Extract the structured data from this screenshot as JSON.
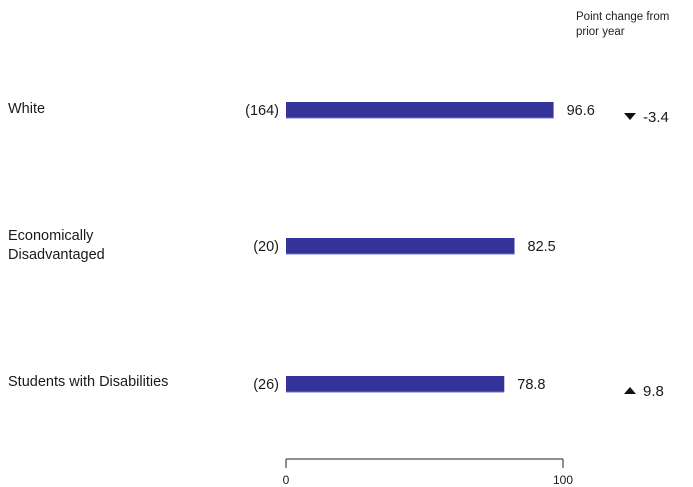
{
  "chart_data": {
    "type": "bar",
    "orientation": "horizontal",
    "categories": [
      "White",
      "Economically Disadvantaged",
      "Students with Disabilities"
    ],
    "category_lines": [
      [
        "White"
      ],
      [
        "Economically",
        "Disadvantaged"
      ],
      [
        "Students with Disabilities"
      ]
    ],
    "counts": [
      "(164)",
      "(20)",
      "(26)"
    ],
    "values": [
      96.6,
      82.5,
      78.8
    ],
    "value_labels": [
      "96.6",
      "82.5",
      "78.8"
    ],
    "change_header": "Point change from prior year",
    "changes": [
      {
        "value": -3.4,
        "label": "-3.4",
        "direction": "down"
      },
      null,
      {
        "value": 9.8,
        "label": "9.8",
        "direction": "up"
      }
    ],
    "xlim": [
      0,
      100
    ],
    "x_ticks": [
      "0",
      "100"
    ],
    "bar_color": "#333399",
    "title": "",
    "xlabel": "",
    "ylabel": ""
  }
}
